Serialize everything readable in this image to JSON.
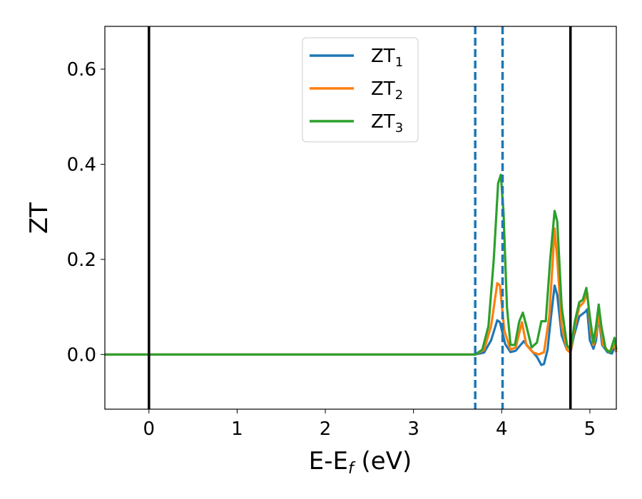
{
  "chart_data": {
    "type": "line",
    "xlabel": {
      "main": "E-E",
      "sub": "f",
      "suffix": " (eV)"
    },
    "ylabel": "ZT",
    "xlim": [
      -0.5,
      5.3
    ],
    "ylim": [
      -0.115,
      0.69
    ],
    "xticks": [
      0,
      1,
      2,
      3,
      4,
      5
    ],
    "xtick_labels": [
      "0",
      "1",
      "2",
      "3",
      "4",
      "5"
    ],
    "yticks": [
      0.0,
      0.2,
      0.4,
      0.6
    ],
    "ytick_labels": [
      "0.0",
      "0.2",
      "0.4",
      "0.6"
    ],
    "grid": false,
    "legend": {
      "placement": "top-center"
    },
    "vlines_solid": [
      0.0,
      4.78
    ],
    "vlines_dashed": [
      3.7,
      4.01
    ],
    "series": [
      {
        "name_main": "ZT",
        "name_sub": "1",
        "color": "#1f77b4",
        "points": [
          [
            -0.5,
            0
          ],
          [
            3.7,
            0
          ],
          [
            3.8,
            0.004
          ],
          [
            3.88,
            0.03
          ],
          [
            3.95,
            0.072
          ],
          [
            3.98,
            0.068
          ],
          [
            4.04,
            0.022
          ],
          [
            4.1,
            0.005
          ],
          [
            4.16,
            0.008
          ],
          [
            4.25,
            0.028
          ],
          [
            4.32,
            0.012
          ],
          [
            4.4,
            -0.005
          ],
          [
            4.45,
            -0.022
          ],
          [
            4.48,
            -0.02
          ],
          [
            4.52,
            0.01
          ],
          [
            4.56,
            0.08
          ],
          [
            4.6,
            0.145
          ],
          [
            4.63,
            0.125
          ],
          [
            4.68,
            0.04
          ],
          [
            4.74,
            0.01
          ],
          [
            4.78,
            0.004
          ],
          [
            4.82,
            0.04
          ],
          [
            4.88,
            0.08
          ],
          [
            4.95,
            0.09
          ],
          [
            4.97,
            0.095
          ],
          [
            5.0,
            0.03
          ],
          [
            5.04,
            0.012
          ],
          [
            5.07,
            0.03
          ],
          [
            5.1,
            0.08
          ],
          [
            5.14,
            0.02
          ],
          [
            5.2,
            0.005
          ],
          [
            5.25,
            0.002
          ],
          [
            5.28,
            0.015
          ],
          [
            5.3,
            0.005
          ]
        ]
      },
      {
        "name_main": "ZT",
        "name_sub": "2",
        "color": "#ff7f0e",
        "points": [
          [
            -0.5,
            0
          ],
          [
            3.7,
            0
          ],
          [
            3.8,
            0.01
          ],
          [
            3.88,
            0.06
          ],
          [
            3.95,
            0.15
          ],
          [
            3.98,
            0.145
          ],
          [
            4.03,
            0.05
          ],
          [
            4.1,
            0.01
          ],
          [
            4.16,
            0.015
          ],
          [
            4.23,
            0.068
          ],
          [
            4.28,
            0.02
          ],
          [
            4.35,
            0.005
          ],
          [
            4.42,
            0.0
          ],
          [
            4.48,
            0.005
          ],
          [
            4.54,
            0.08
          ],
          [
            4.58,
            0.2
          ],
          [
            4.6,
            0.265
          ],
          [
            4.63,
            0.2
          ],
          [
            4.68,
            0.06
          ],
          [
            4.74,
            0.01
          ],
          [
            4.78,
            0.004
          ],
          [
            4.83,
            0.06
          ],
          [
            4.88,
            0.1
          ],
          [
            4.93,
            0.11
          ],
          [
            4.97,
            0.13
          ],
          [
            5.01,
            0.05
          ],
          [
            5.04,
            0.02
          ],
          [
            5.08,
            0.05
          ],
          [
            5.1,
            0.085
          ],
          [
            5.15,
            0.02
          ],
          [
            5.22,
            0.005
          ],
          [
            5.28,
            0.02
          ],
          [
            5.3,
            0.005
          ]
        ]
      },
      {
        "name_main": "ZT",
        "name_sub": "3",
        "color": "#2ca02c",
        "points": [
          [
            -0.5,
            0
          ],
          [
            3.7,
            0
          ],
          [
            3.78,
            0.01
          ],
          [
            3.85,
            0.06
          ],
          [
            3.91,
            0.2
          ],
          [
            3.96,
            0.36
          ],
          [
            3.99,
            0.378
          ],
          [
            4.02,
            0.3
          ],
          [
            4.06,
            0.1
          ],
          [
            4.1,
            0.02
          ],
          [
            4.15,
            0.02
          ],
          [
            4.2,
            0.07
          ],
          [
            4.24,
            0.088
          ],
          [
            4.28,
            0.06
          ],
          [
            4.34,
            0.015
          ],
          [
            4.4,
            0.025
          ],
          [
            4.45,
            0.07
          ],
          [
            4.5,
            0.07
          ],
          [
            4.55,
            0.2
          ],
          [
            4.6,
            0.302
          ],
          [
            4.63,
            0.28
          ],
          [
            4.68,
            0.1
          ],
          [
            4.74,
            0.02
          ],
          [
            4.78,
            0.01
          ],
          [
            4.83,
            0.07
          ],
          [
            4.88,
            0.11
          ],
          [
            4.92,
            0.115
          ],
          [
            4.96,
            0.14
          ],
          [
            5.0,
            0.08
          ],
          [
            5.04,
            0.025
          ],
          [
            5.07,
            0.06
          ],
          [
            5.1,
            0.105
          ],
          [
            5.13,
            0.06
          ],
          [
            5.18,
            0.01
          ],
          [
            5.23,
            0.005
          ],
          [
            5.28,
            0.035
          ],
          [
            5.3,
            0.01
          ]
        ]
      }
    ]
  }
}
